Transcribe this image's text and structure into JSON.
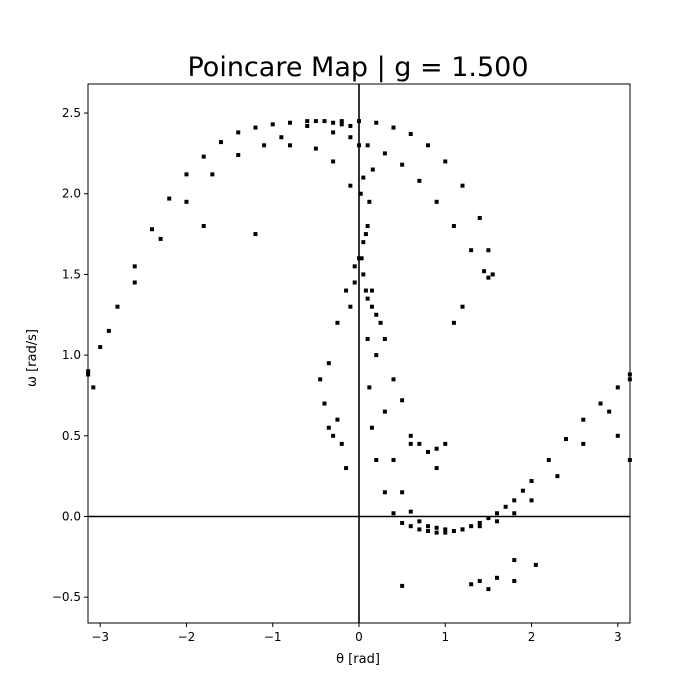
{
  "chart_data": {
    "type": "scatter",
    "title": "Poincare Map | g = 1.500",
    "xlabel": "θ [rad]",
    "ylabel": "ω [rad/s]",
    "xlim": [
      -3.1416,
      3.1416
    ],
    "ylim": [
      -0.66,
      2.68
    ],
    "xticks": [
      -3,
      -2,
      -1,
      0,
      1,
      2,
      3
    ],
    "xtick_labels": [
      "−3",
      "−2",
      "−1",
      "0",
      "1",
      "2",
      "3"
    ],
    "yticks": [
      -0.5,
      0.0,
      0.5,
      1.0,
      1.5,
      2.0,
      2.5
    ],
    "ytick_labels": [
      "−0.5",
      "0.0",
      "0.5",
      "1.0",
      "1.5",
      "2.0",
      "2.5"
    ],
    "grid": false,
    "zero_lines": true,
    "marker_color": "#000000",
    "series": [
      {
        "x": [
          -3.14,
          -3.0,
          -2.8,
          -2.6,
          -2.4,
          -2.2,
          -2.0,
          -1.8,
          -1.6,
          -1.4,
          -1.2,
          -1.0,
          -0.8,
          -0.6,
          -0.5,
          -0.3,
          -0.2,
          -0.1,
          -3.14,
          -2.9,
          -2.6,
          -2.3,
          -2.0,
          -1.7,
          -1.4,
          -1.1,
          -0.8,
          -0.5,
          -0.3,
          -0.1,
          -0.9,
          -0.6,
          -0.4,
          -0.2,
          0.0,
          0.2,
          0.4,
          0.6,
          0.8,
          1.0,
          1.2,
          1.4,
          1.5,
          1.55,
          -0.3,
          -0.1,
          0.1,
          0.3,
          0.5,
          0.7,
          0.9,
          1.1,
          1.3,
          1.45,
          1.5,
          0.0,
          0.02,
          0.05,
          0.08,
          0.1,
          0.12,
          0.15,
          0.2,
          0.3,
          0.4,
          0.5,
          0.6,
          0.7,
          0.8,
          0.9,
          1.0,
          1.1,
          1.2,
          1.3,
          1.4,
          1.5,
          1.6,
          1.7,
          1.8,
          1.9,
          2.0,
          2.2,
          2.4,
          2.6,
          2.8,
          3.0,
          3.14,
          0.05,
          0.1,
          0.15,
          0.2,
          0.3,
          0.4,
          0.5,
          0.6,
          0.7,
          0.8,
          0.9,
          1.0,
          1.2,
          1.4,
          1.6,
          1.8,
          2.0,
          2.3,
          2.6,
          2.9,
          3.14,
          -0.35,
          -0.25,
          -0.15,
          -0.05,
          0.03,
          0.08,
          0.12,
          0.16,
          -0.1,
          -0.05,
          0.0,
          0.05,
          0.1,
          -0.45,
          -0.4,
          -0.35,
          -0.3,
          -0.25,
          -0.2,
          -0.15,
          0.15,
          0.2,
          0.25,
          0.3,
          0.4,
          0.5,
          0.6,
          0.7,
          0.8,
          0.9,
          1.0,
          1.1,
          1.2,
          1.3,
          1.5,
          1.6,
          1.8,
          2.05,
          3.0,
          3.14,
          -3.08,
          -1.8,
          -1.2,
          0.6,
          0.9,
          1.4,
          1.8,
          0.5
        ],
        "y": [
          0.88,
          1.05,
          1.3,
          1.55,
          1.78,
          1.97,
          2.12,
          2.23,
          2.32,
          2.38,
          2.41,
          2.43,
          2.44,
          2.45,
          2.45,
          2.44,
          2.43,
          2.42,
          0.9,
          1.15,
          1.45,
          1.72,
          1.95,
          2.12,
          2.24,
          2.3,
          2.3,
          2.28,
          2.2,
          2.05,
          2.35,
          2.42,
          2.45,
          2.45,
          2.45,
          2.44,
          2.41,
          2.37,
          2.3,
          2.2,
          2.05,
          1.85,
          1.65,
          1.5,
          2.38,
          2.35,
          2.3,
          2.25,
          2.18,
          2.08,
          1.95,
          1.8,
          1.65,
          1.52,
          1.48,
          2.3,
          2.0,
          1.7,
          1.4,
          1.1,
          0.8,
          0.55,
          0.35,
          0.15,
          0.02,
          -0.04,
          -0.06,
          -0.08,
          -0.09,
          -0.1,
          -0.1,
          -0.09,
          -0.08,
          -0.06,
          -0.04,
          -0.01,
          0.02,
          0.06,
          0.1,
          0.16,
          0.22,
          0.35,
          0.48,
          0.6,
          0.7,
          0.8,
          0.88,
          2.1,
          1.8,
          1.4,
          1.0,
          0.65,
          0.35,
          0.15,
          0.03,
          -0.03,
          -0.06,
          -0.07,
          -0.08,
          -0.08,
          -0.06,
          -0.03,
          0.02,
          0.1,
          0.25,
          0.45,
          0.65,
          0.85,
          0.95,
          1.2,
          1.4,
          1.55,
          1.6,
          1.75,
          1.95,
          2.15,
          1.3,
          1.45,
          1.6,
          1.5,
          1.35,
          0.85,
          0.7,
          0.55,
          0.5,
          0.6,
          0.45,
          0.3,
          1.3,
          1.25,
          1.2,
          1.1,
          0.85,
          0.72,
          0.5,
          0.45,
          0.4,
          0.42,
          0.45,
          1.2,
          1.3,
          -0.42,
          -0.45,
          -0.38,
          -0.27,
          -0.3,
          0.5,
          0.35,
          0.8,
          1.8,
          1.75,
          0.45,
          0.3,
          -0.4,
          -0.4,
          -0.43
        ],
        "marker": "square"
      }
    ]
  }
}
